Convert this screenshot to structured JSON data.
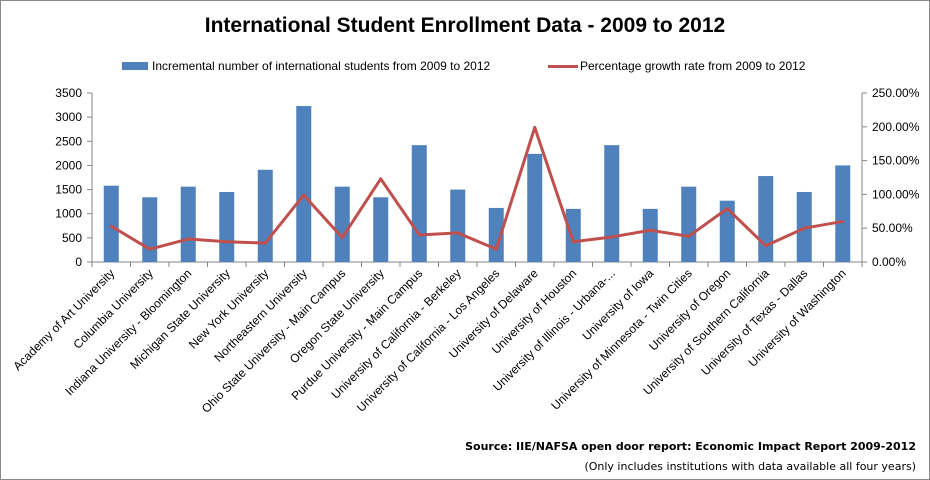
{
  "chart_data": {
    "type": "bar",
    "title": "International Student Enrollment Data - 2009 to 2012",
    "categories": [
      "Academy of Art University",
      "Columbia University",
      "Indiana University - Bloomington",
      "Michigan State University",
      "New York University",
      "Northeastern University",
      "Ohio State University - Main Campus",
      "Oregon State University",
      "Purdue University - Main Campus",
      "University of California - Berkeley",
      "University of California - Los Angeles",
      "University of Delaware",
      "University of Houston",
      "University of Illinois - Urbana-...",
      "University of Iowa",
      "University of Minnesota - Twin Cities",
      "University of Oregon",
      "University of Southern California",
      "University of Texas - Dallas",
      "University of Washington"
    ],
    "series": [
      {
        "name": "Incremental number of international students from 2009 to 2012",
        "type": "bar",
        "axis": "left",
        "color": "#4f81bd",
        "values": [
          1580,
          1340,
          1560,
          1450,
          1910,
          3230,
          1560,
          1340,
          2420,
          1500,
          1120,
          2240,
          1100,
          2420,
          1100,
          1560,
          1270,
          1780,
          1450,
          2000
        ]
      },
      {
        "name": "Percentage growth rate from 2009 to 2012",
        "type": "line",
        "axis": "right",
        "color": "#c0504d",
        "values": [
          53,
          19,
          34,
          30,
          28,
          99,
          36,
          123,
          40,
          43,
          19,
          199,
          30,
          37,
          47,
          38,
          79,
          24,
          50,
          60
        ]
      }
    ],
    "y_left": {
      "ylim": [
        0,
        3500
      ],
      "ticks": [
        0,
        500,
        1000,
        1500,
        2000,
        2500,
        3000,
        3500
      ],
      "tick_labels": [
        "0",
        "500",
        "1000",
        "1500",
        "2000",
        "2500",
        "3000",
        "3500"
      ]
    },
    "y_right": {
      "ylim": [
        0,
        250
      ],
      "ticks": [
        0,
        50,
        100,
        150,
        200,
        250
      ],
      "tick_labels": [
        "0.00%",
        "50.00%",
        "100.00%",
        "150.00%",
        "200.00%",
        "250.00%"
      ]
    },
    "grid": false,
    "legend_position": "top"
  },
  "source_note": "Source: IIE/NAFSA open door report: Economic Impact Report 2009-2012",
  "footnote": "(Only includes institutions with data available all four years)"
}
